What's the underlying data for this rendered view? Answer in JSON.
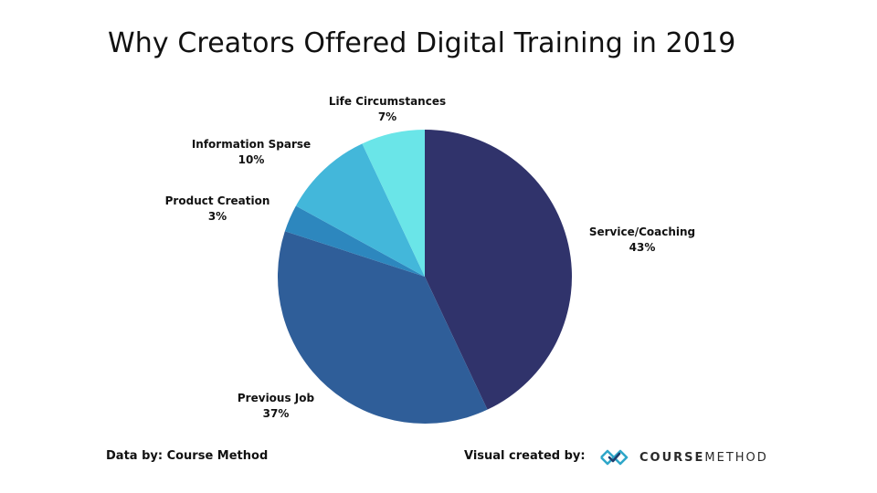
{
  "title": "Why Creators Offered Digital Training in 2019",
  "chart_data": {
    "type": "pie",
    "title": "Why Creators Offered Digital Training in 2019",
    "slices": [
      {
        "label": "Service/Coaching",
        "value": 43,
        "value_label": "43%",
        "color": "#30336b"
      },
      {
        "label": "Previous Job",
        "value": 37,
        "value_label": "37%",
        "color": "#2f5e99"
      },
      {
        "label": "Product Creation",
        "value": 3,
        "value_label": "3%",
        "color": "#2d87be"
      },
      {
        "label": "Information Sparse",
        "value": 10,
        "value_label": "10%",
        "color": "#43b7da"
      },
      {
        "label": "Life Circumstances",
        "value": 7,
        "value_label": "7%",
        "color": "#6ae5e8"
      }
    ]
  },
  "footer": {
    "data_by": "Data by: Course Method",
    "visual_by": "Visual created by:",
    "brand_part1": "COURSE",
    "brand_part2": "METHOD",
    "brand_icon": "course-method-logo-icon",
    "brand_color": "#2fa7c9"
  }
}
